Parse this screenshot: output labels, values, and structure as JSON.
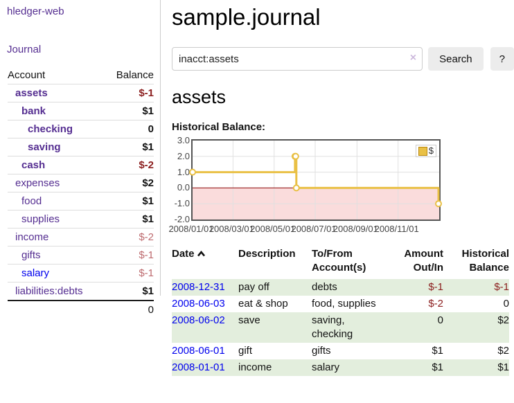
{
  "colors": {
    "link_purple": "#552e91",
    "link_blue": "#0000ee",
    "negative_strong": "#8b1e1e",
    "negative_faded": "#bd6a6e",
    "row_shade": "#e3eedd",
    "chart_line": "#e9c045",
    "chart_negative_region": "#fadcdc",
    "chart_zero_line": "#8b0000",
    "legend_swatch_border": "#b8860b"
  },
  "app": {
    "title": "hledger-web",
    "nav_journal": "Journal"
  },
  "sidebar": {
    "table": {
      "headers": {
        "account": "Account",
        "balance": "Balance"
      },
      "rows": [
        {
          "account": "assets",
          "balance": "$-1",
          "depth": 1,
          "bold": true,
          "amount_style": "negative",
          "link": "purple"
        },
        {
          "account": "bank",
          "balance": "$1",
          "depth": 2,
          "bold": true,
          "amount_style": "normal",
          "link": "purple"
        },
        {
          "account": "checking",
          "balance": "0",
          "depth": 3,
          "bold": true,
          "amount_style": "normal",
          "link": "purple"
        },
        {
          "account": "saving",
          "balance": "$1",
          "depth": 3,
          "bold": true,
          "amount_style": "normal",
          "link": "purple"
        },
        {
          "account": "cash",
          "balance": "$-2",
          "depth": 2,
          "bold": true,
          "amount_style": "negative",
          "link": "purple"
        },
        {
          "account": "expenses",
          "balance": "$2",
          "depth": 1,
          "bold": false,
          "amount_style": "normal",
          "link": "purple"
        },
        {
          "account": "food",
          "balance": "$1",
          "depth": 2,
          "bold": false,
          "amount_style": "normal",
          "link": "purple"
        },
        {
          "account": "supplies",
          "balance": "$1",
          "depth": 2,
          "bold": false,
          "amount_style": "normal",
          "link": "purple"
        },
        {
          "account": "income",
          "balance": "$-2",
          "depth": 1,
          "bold": false,
          "amount_style": "negative_faded",
          "link": "purple"
        },
        {
          "account": "gifts",
          "balance": "$-1",
          "depth": 2,
          "bold": false,
          "amount_style": "negative_faded",
          "link": "purple"
        },
        {
          "account": "salary",
          "balance": "$-1",
          "depth": 2,
          "bold": false,
          "amount_style": "negative_faded",
          "link": "blue"
        },
        {
          "account": "liabilities:debts",
          "balance": "$1",
          "depth": 1,
          "bold": false,
          "amount_style": "normal",
          "link": "purple"
        }
      ],
      "total": "0"
    }
  },
  "header": {
    "title": "sample.journal"
  },
  "search": {
    "query": "inacct:assets",
    "clear_icon": "×",
    "button_label": "Search",
    "help_label": "?"
  },
  "account_page": {
    "heading": "assets"
  },
  "chart_data": {
    "type": "line",
    "step": true,
    "title": "Historical Balance:",
    "x_range": [
      "2008-01-01",
      "2009-01-01"
    ],
    "ylim": [
      -2,
      3
    ],
    "yticks": [
      3.0,
      2.0,
      1.0,
      0.0,
      -1.0,
      -2.0
    ],
    "xticks": [
      {
        "label": "2008/01/01",
        "date": "2008-01-01"
      },
      {
        "label": "2008/03/01",
        "date": "2008-03-01"
      },
      {
        "label": "2008/05/01",
        "date": "2008-05-01"
      },
      {
        "label": "2008/07/01",
        "date": "2008-07-01"
      },
      {
        "label": "2008/09/01",
        "date": "2008-09-01"
      },
      {
        "label": "2008/11/01",
        "date": "2008-11-01"
      }
    ],
    "grid": true,
    "legend_position": "top-right",
    "series": [
      {
        "name": "$",
        "points": [
          [
            "2008-01-01",
            1
          ],
          [
            "2008-06-01",
            2
          ],
          [
            "2008-06-02",
            2
          ],
          [
            "2008-06-03",
            0
          ],
          [
            "2008-12-31",
            -1
          ]
        ]
      }
    ]
  },
  "transactions": {
    "headers": {
      "date": "Date",
      "description": "Description",
      "accounts": "To/From Account(s)",
      "amount": "Amount Out/In",
      "balance": "Historical Balance"
    },
    "rows": [
      {
        "date": "2008-12-31",
        "description": "pay off",
        "accounts": "debts",
        "amount": "$-1",
        "balance": "$-1",
        "amount_style": "negative",
        "balance_style": "negative",
        "shaded": true
      },
      {
        "date": "2008-06-03",
        "description": "eat & shop",
        "accounts": "food, supplies",
        "amount": "$-2",
        "balance": "0",
        "amount_style": "negative",
        "balance_style": "normal",
        "shaded": false
      },
      {
        "date": "2008-06-02",
        "description": "save",
        "accounts": "saving, checking",
        "amount": "0",
        "balance": "$2",
        "amount_style": "normal",
        "balance_style": "normal",
        "shaded": true
      },
      {
        "date": "2008-06-01",
        "description": "gift",
        "accounts": "gifts",
        "amount": "$1",
        "balance": "$2",
        "amount_style": "normal",
        "balance_style": "normal",
        "shaded": false
      },
      {
        "date": "2008-01-01",
        "description": "income",
        "accounts": "salary",
        "amount": "$1",
        "balance": "$1",
        "amount_style": "normal",
        "balance_style": "normal",
        "shaded": true
      }
    ]
  }
}
